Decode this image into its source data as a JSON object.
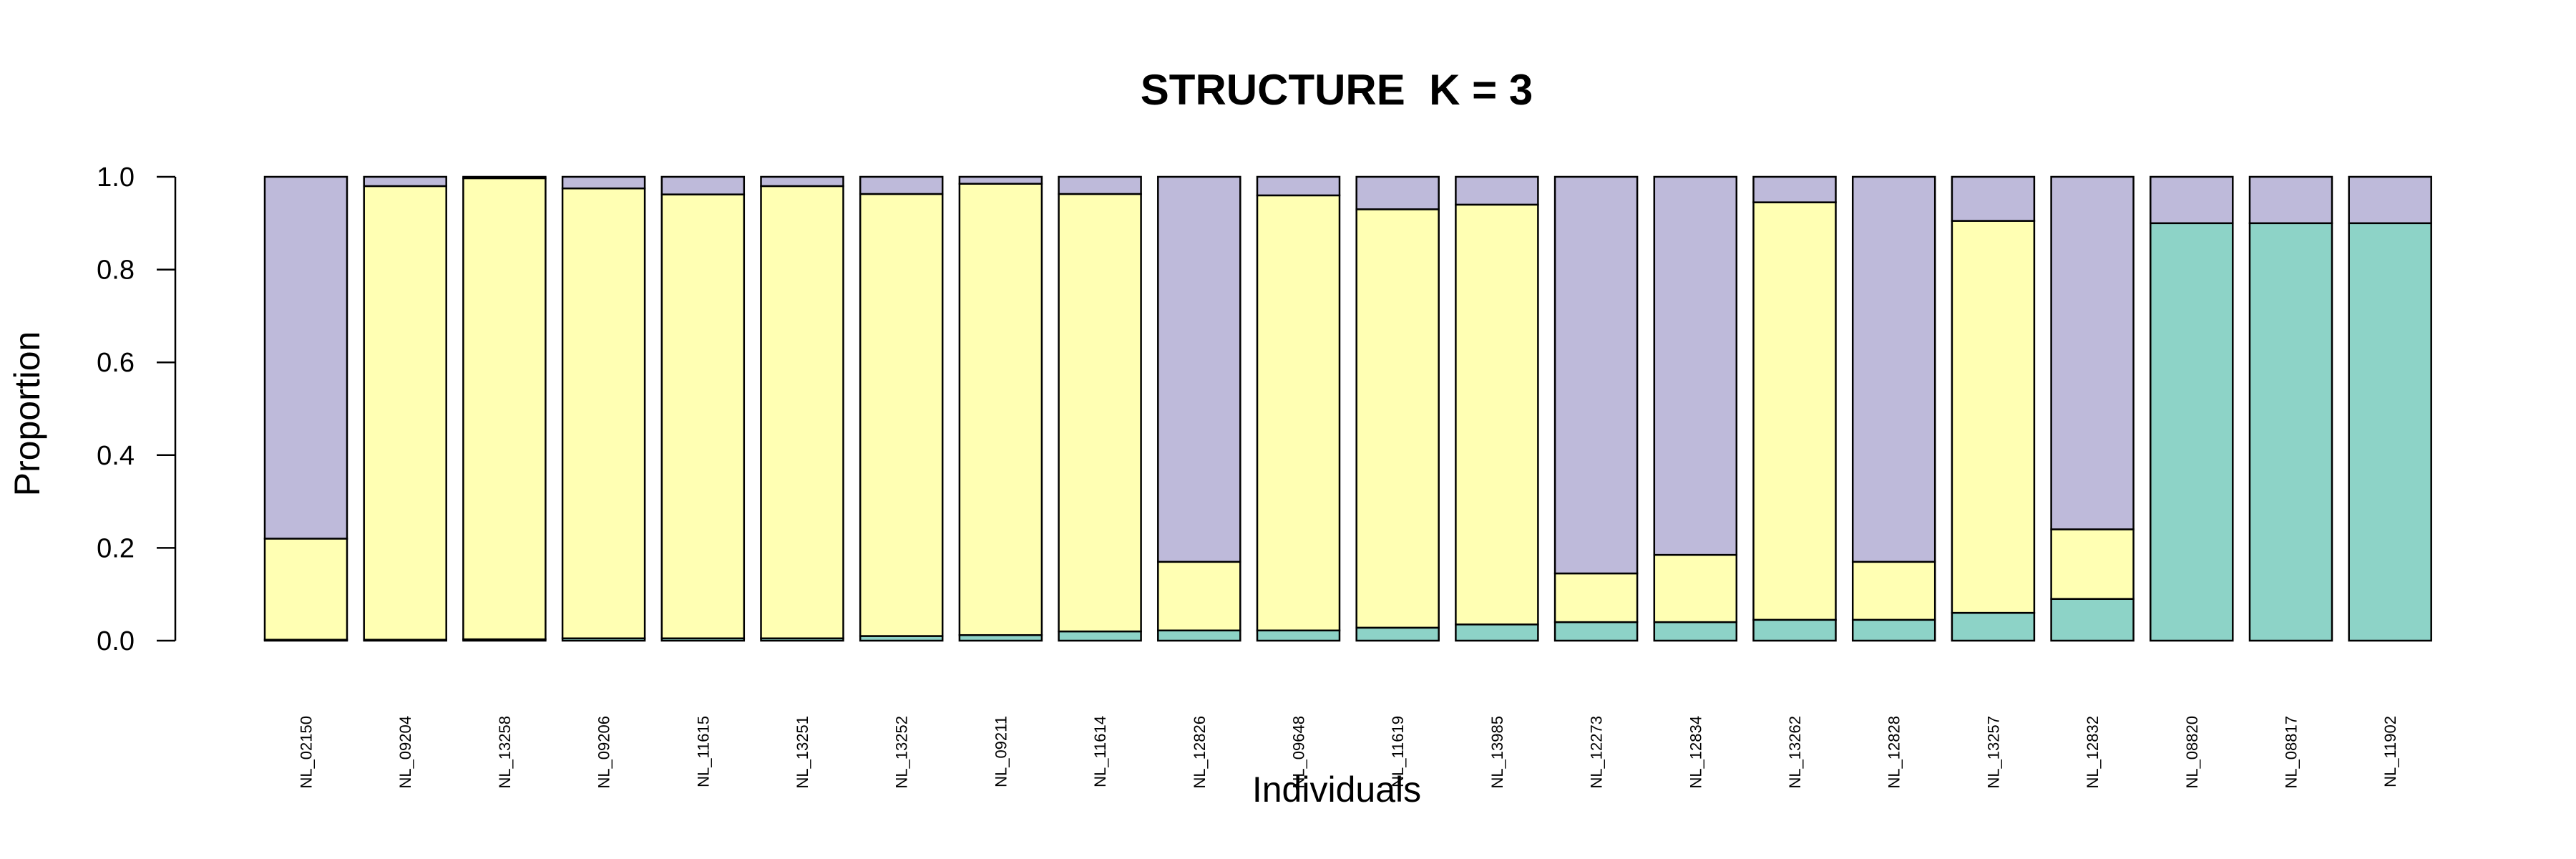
{
  "chart_data": {
    "type": "bar",
    "stacked": true,
    "title": "STRUCTURE  K = 3",
    "xlabel": "Individuals",
    "ylabel": "Proportion",
    "ylim": [
      0,
      1
    ],
    "yticks": [
      "0.0",
      "0.2",
      "0.4",
      "0.6",
      "0.8",
      "1.0"
    ],
    "grid": false,
    "legend": "none",
    "categories": [
      "NL_02150",
      "NL_09204",
      "NL_13258",
      "NL_09206",
      "NL_11615",
      "NL_13251",
      "NL_13252",
      "NL_09211",
      "NL_11614",
      "NL_12826",
      "NL_09648",
      "NL_11619",
      "NL_13985",
      "NL_12273",
      "NL_12834",
      "NL_13262",
      "NL_12828",
      "NL_13257",
      "NL_12832",
      "NL_08820",
      "NL_08817",
      "NL_11902"
    ],
    "series": [
      {
        "color": "#8DD3C7",
        "values": [
          0.002,
          0.002,
          0.003,
          0.005,
          0.005,
          0.005,
          0.01,
          0.012,
          0.02,
          0.022,
          0.022,
          0.028,
          0.035,
          0.04,
          0.04,
          0.045,
          0.045,
          0.06,
          0.09,
          0.9,
          0.9,
          0.9
        ]
      },
      {
        "color": "#FFFFB3",
        "values": [
          0.218,
          0.978,
          0.994,
          0.97,
          0.957,
          0.975,
          0.953,
          0.973,
          0.943,
          0.148,
          0.938,
          0.902,
          0.905,
          0.105,
          0.145,
          0.9,
          0.125,
          0.845,
          0.15,
          0.0,
          0.0,
          0.0
        ]
      },
      {
        "color": "#BEBADA",
        "values": [
          0.78,
          0.02,
          0.003,
          0.025,
          0.038,
          0.02,
          0.037,
          0.015,
          0.037,
          0.83,
          0.04,
          0.07,
          0.06,
          0.855,
          0.815,
          0.055,
          0.83,
          0.095,
          0.76,
          0.1,
          0.1,
          0.1
        ]
      }
    ]
  }
}
